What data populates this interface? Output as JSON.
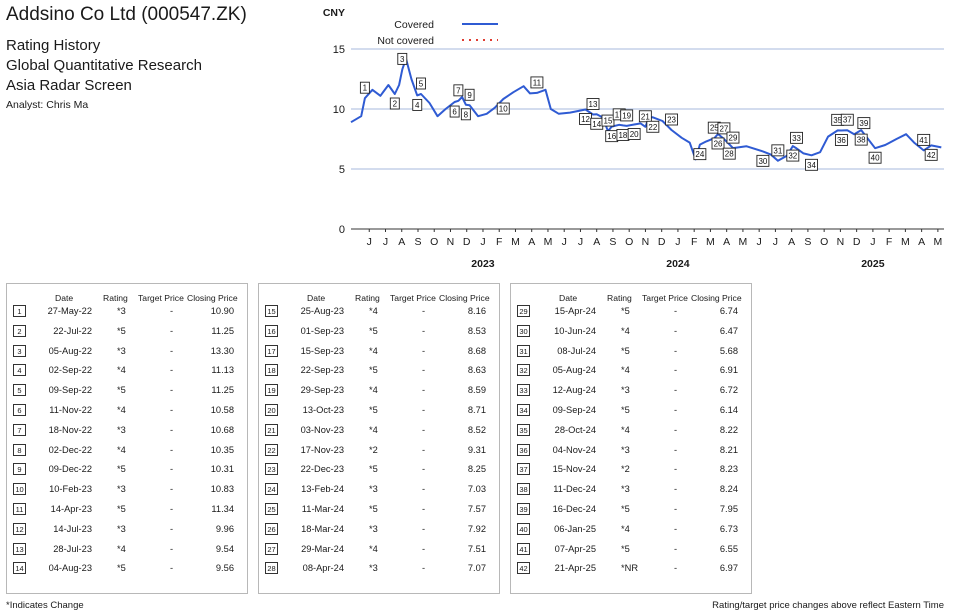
{
  "header": {
    "company": "Addsino Co Ltd (000547.ZK)",
    "lines": [
      "Rating History",
      "Global Quantitative Research",
      "Asia Radar Screen"
    ],
    "analyst": "Analyst: Chris Ma"
  },
  "chart_data": {
    "type": "line",
    "ylabel": "CNY",
    "ylim": [
      0,
      18
    ],
    "yticks": [
      0,
      5,
      10,
      15
    ],
    "grid": true,
    "legend": {
      "position": "top-left",
      "entries": [
        {
          "label": "Covered",
          "style": "solid",
          "color": "#2f5bd3"
        },
        {
          "label": "Not covered",
          "style": "dotted",
          "color": "#e03c31"
        }
      ]
    },
    "x_month_labels": [
      "J",
      "J",
      "A",
      "S",
      "O",
      "N",
      "D",
      "J",
      "F",
      "M",
      "A",
      "M",
      "J",
      "J",
      "A",
      "S",
      "O",
      "N",
      "D",
      "J",
      "F",
      "M",
      "A",
      "M",
      "J",
      "J",
      "A",
      "S",
      "O",
      "N",
      "D",
      "J",
      "F",
      "M",
      "A",
      "M"
    ],
    "x_year_labels": [
      {
        "label": "2023",
        "month_index": 7
      },
      {
        "label": "2024",
        "month_index": 19
      },
      {
        "label": "2025",
        "month_index": 31
      }
    ],
    "series": [
      {
        "style": "covered",
        "color": "#2f5bd3",
        "points": [
          [
            "2022-05-01",
            8.9
          ],
          [
            "2022-05-20",
            9.4
          ],
          [
            "2022-05-27",
            10.9
          ],
          [
            "2022-06-10",
            11.6
          ],
          [
            "2022-06-25",
            11.1
          ],
          [
            "2022-07-10",
            12.0
          ],
          [
            "2022-07-22",
            11.25
          ],
          [
            "2022-07-30",
            12.0
          ],
          [
            "2022-08-05",
            13.3
          ],
          [
            "2022-08-12",
            14.2
          ],
          [
            "2022-08-22",
            12.5
          ],
          [
            "2022-09-02",
            11.13
          ],
          [
            "2022-09-09",
            11.25
          ],
          [
            "2022-09-25",
            10.5
          ],
          [
            "2022-10-10",
            9.4
          ],
          [
            "2022-10-25",
            10.0
          ],
          [
            "2022-11-11",
            10.58
          ],
          [
            "2022-11-18",
            10.68
          ],
          [
            "2022-11-25",
            11.0
          ],
          [
            "2022-12-02",
            10.35
          ],
          [
            "2022-12-09",
            10.31
          ],
          [
            "2022-12-25",
            9.4
          ],
          [
            "2023-01-10",
            9.6
          ],
          [
            "2023-01-25",
            10.1
          ],
          [
            "2023-02-10",
            10.83
          ],
          [
            "2023-03-01",
            11.4
          ],
          [
            "2023-03-20",
            11.9
          ],
          [
            "2023-04-01",
            11.3
          ],
          [
            "2023-04-14",
            11.34
          ],
          [
            "2023-04-30",
            11.6
          ],
          [
            "2023-05-10",
            10.0
          ],
          [
            "2023-05-25",
            9.6
          ],
          [
            "2023-06-15",
            9.7
          ],
          [
            "2023-07-14",
            9.96
          ],
          [
            "2023-07-28",
            9.54
          ],
          [
            "2023-08-04",
            9.56
          ],
          [
            "2023-08-15",
            9.3
          ],
          [
            "2023-08-25",
            8.16
          ],
          [
            "2023-09-01",
            8.53
          ],
          [
            "2023-09-15",
            8.68
          ],
          [
            "2023-09-22",
            8.63
          ],
          [
            "2023-09-29",
            8.59
          ],
          [
            "2023-10-13",
            8.71
          ],
          [
            "2023-10-25",
            8.8
          ],
          [
            "2023-11-03",
            8.52
          ],
          [
            "2023-11-10",
            9.3
          ],
          [
            "2023-11-17",
            9.31
          ],
          [
            "2023-12-05",
            9.0
          ],
          [
            "2023-12-22",
            8.25
          ],
          [
            "2024-01-10",
            7.6
          ],
          [
            "2024-01-25",
            7.2
          ],
          [
            "2024-02-05",
            5.8
          ],
          [
            "2024-02-13",
            7.03
          ],
          [
            "2024-02-25",
            7.3
          ],
          [
            "2024-03-11",
            7.57
          ],
          [
            "2024-03-18",
            7.92
          ],
          [
            "2024-03-29",
            7.51
          ],
          [
            "2024-04-08",
            7.07
          ],
          [
            "2024-04-15",
            6.74
          ],
          [
            "2024-05-10",
            6.9
          ],
          [
            "2024-06-10",
            6.47
          ],
          [
            "2024-06-25",
            6.2
          ],
          [
            "2024-07-08",
            5.68
          ],
          [
            "2024-07-25",
            6.1
          ],
          [
            "2024-08-05",
            6.91
          ],
          [
            "2024-08-12",
            6.72
          ],
          [
            "2024-08-25",
            6.3
          ],
          [
            "2024-09-09",
            6.14
          ],
          [
            "2024-09-25",
            6.4
          ],
          [
            "2024-10-10",
            7.7
          ],
          [
            "2024-10-28",
            8.22
          ],
          [
            "2024-11-04",
            8.21
          ],
          [
            "2024-11-15",
            8.23
          ],
          [
            "2024-11-28",
            7.9
          ],
          [
            "2024-12-11",
            8.24
          ],
          [
            "2024-12-16",
            7.95
          ],
          [
            "2025-01-06",
            6.73
          ],
          [
            "2025-01-25",
            7.0
          ],
          [
            "2025-02-15",
            7.5
          ],
          [
            "2025-03-05",
            7.9
          ],
          [
            "2025-03-20",
            7.2
          ],
          [
            "2025-04-07",
            6.55
          ],
          [
            "2025-04-21",
            6.97
          ],
          [
            "2025-05-10",
            6.8
          ]
        ]
      }
    ],
    "markers": [
      {
        "n": 1,
        "date": "2022-05-27",
        "price": 10.9
      },
      {
        "n": 2,
        "date": "2022-07-22",
        "price": 11.25
      },
      {
        "n": 3,
        "date": "2022-08-05",
        "price": 13.3
      },
      {
        "n": 4,
        "date": "2022-09-02",
        "price": 11.13
      },
      {
        "n": 5,
        "date": "2022-09-09",
        "price": 11.25
      },
      {
        "n": 6,
        "date": "2022-11-11",
        "price": 10.58
      },
      {
        "n": 7,
        "date": "2022-11-18",
        "price": 10.68
      },
      {
        "n": 8,
        "date": "2022-12-02",
        "price": 10.35
      },
      {
        "n": 9,
        "date": "2022-12-09",
        "price": 10.31
      },
      {
        "n": 10,
        "date": "2023-02-10",
        "price": 10.83
      },
      {
        "n": 11,
        "date": "2023-04-14",
        "price": 11.34
      },
      {
        "n": 12,
        "date": "2023-07-14",
        "price": 9.96
      },
      {
        "n": 13,
        "date": "2023-07-28",
        "price": 9.54
      },
      {
        "n": 14,
        "date": "2023-08-04",
        "price": 9.56
      },
      {
        "n": 15,
        "date": "2023-08-25",
        "price": 8.16
      },
      {
        "n": 16,
        "date": "2023-09-01",
        "price": 8.53
      },
      {
        "n": 17,
        "date": "2023-09-15",
        "price": 8.68
      },
      {
        "n": 18,
        "date": "2023-09-22",
        "price": 8.63
      },
      {
        "n": 19,
        "date": "2023-09-29",
        "price": 8.59
      },
      {
        "n": 20,
        "date": "2023-10-13",
        "price": 8.71
      },
      {
        "n": 21,
        "date": "2023-11-03",
        "price": 8.52
      },
      {
        "n": 22,
        "date": "2023-11-17",
        "price": 9.31
      },
      {
        "n": 23,
        "date": "2023-12-22",
        "price": 8.25
      },
      {
        "n": 24,
        "date": "2024-02-13",
        "price": 7.03
      },
      {
        "n": 25,
        "date": "2024-03-11",
        "price": 7.57
      },
      {
        "n": 26,
        "date": "2024-03-18",
        "price": 7.92
      },
      {
        "n": 27,
        "date": "2024-03-29",
        "price": 7.51
      },
      {
        "n": 28,
        "date": "2024-04-08",
        "price": 7.07
      },
      {
        "n": 29,
        "date": "2024-04-15",
        "price": 6.74
      },
      {
        "n": 30,
        "date": "2024-06-10",
        "price": 6.47
      },
      {
        "n": 31,
        "date": "2024-07-08",
        "price": 5.68
      },
      {
        "n": 32,
        "date": "2024-08-05",
        "price": 6.91
      },
      {
        "n": 33,
        "date": "2024-08-12",
        "price": 6.72
      },
      {
        "n": 34,
        "date": "2024-09-09",
        "price": 6.14
      },
      {
        "n": 35,
        "date": "2024-10-28",
        "price": 8.22
      },
      {
        "n": 36,
        "date": "2024-11-04",
        "price": 8.21
      },
      {
        "n": 37,
        "date": "2024-11-15",
        "price": 8.23
      },
      {
        "n": 38,
        "date": "2024-12-11",
        "price": 8.24
      },
      {
        "n": 39,
        "date": "2024-12-16",
        "price": 7.95
      },
      {
        "n": 40,
        "date": "2025-01-06",
        "price": 6.73
      },
      {
        "n": 41,
        "date": "2025-04-07",
        "price": 6.55
      },
      {
        "n": 42,
        "date": "2025-04-21",
        "price": 6.97
      }
    ]
  },
  "table": {
    "headers": {
      "date": "Date",
      "rating": "Rating",
      "target": "Target Price",
      "close": "Closing Price"
    },
    "columns": [
      [
        {
          "n": "1",
          "date": "27-May-22",
          "rating": "*3",
          "target": "-",
          "close": "10.90"
        },
        {
          "n": "2",
          "date": "22-Jul-22",
          "rating": "*5",
          "target": "-",
          "close": "11.25"
        },
        {
          "n": "3",
          "date": "05-Aug-22",
          "rating": "*3",
          "target": "-",
          "close": "13.30"
        },
        {
          "n": "4",
          "date": "02-Sep-22",
          "rating": "*4",
          "target": "-",
          "close": "11.13"
        },
        {
          "n": "5",
          "date": "09-Sep-22",
          "rating": "*5",
          "target": "-",
          "close": "11.25"
        },
        {
          "n": "6",
          "date": "11-Nov-22",
          "rating": "*4",
          "target": "-",
          "close": "10.58"
        },
        {
          "n": "7",
          "date": "18-Nov-22",
          "rating": "*3",
          "target": "-",
          "close": "10.68"
        },
        {
          "n": "8",
          "date": "02-Dec-22",
          "rating": "*4",
          "target": "-",
          "close": "10.35"
        },
        {
          "n": "9",
          "date": "09-Dec-22",
          "rating": "*5",
          "target": "-",
          "close": "10.31"
        },
        {
          "n": "10",
          "date": "10-Feb-23",
          "rating": "*3",
          "target": "-",
          "close": "10.83"
        },
        {
          "n": "11",
          "date": "14-Apr-23",
          "rating": "*5",
          "target": "-",
          "close": "11.34"
        },
        {
          "n": "12",
          "date": "14-Jul-23",
          "rating": "*3",
          "target": "-",
          "close": "9.96"
        },
        {
          "n": "13",
          "date": "28-Jul-23",
          "rating": "*4",
          "target": "-",
          "close": "9.54"
        },
        {
          "n": "14",
          "date": "04-Aug-23",
          "rating": "*5",
          "target": "-",
          "close": "9.56"
        }
      ],
      [
        {
          "n": "15",
          "date": "25-Aug-23",
          "rating": "*4",
          "target": "-",
          "close": "8.16"
        },
        {
          "n": "16",
          "date": "01-Sep-23",
          "rating": "*5",
          "target": "-",
          "close": "8.53"
        },
        {
          "n": "17",
          "date": "15-Sep-23",
          "rating": "*4",
          "target": "-",
          "close": "8.68"
        },
        {
          "n": "18",
          "date": "22-Sep-23",
          "rating": "*5",
          "target": "-",
          "close": "8.63"
        },
        {
          "n": "19",
          "date": "29-Sep-23",
          "rating": "*4",
          "target": "-",
          "close": "8.59"
        },
        {
          "n": "20",
          "date": "13-Oct-23",
          "rating": "*5",
          "target": "-",
          "close": "8.71"
        },
        {
          "n": "21",
          "date": "03-Nov-23",
          "rating": "*4",
          "target": "-",
          "close": "8.52"
        },
        {
          "n": "22",
          "date": "17-Nov-23",
          "rating": "*2",
          "target": "-",
          "close": "9.31"
        },
        {
          "n": "23",
          "date": "22-Dec-23",
          "rating": "*5",
          "target": "-",
          "close": "8.25"
        },
        {
          "n": "24",
          "date": "13-Feb-24",
          "rating": "*3",
          "target": "-",
          "close": "7.03"
        },
        {
          "n": "25",
          "date": "11-Mar-24",
          "rating": "*5",
          "target": "-",
          "close": "7.57"
        },
        {
          "n": "26",
          "date": "18-Mar-24",
          "rating": "*3",
          "target": "-",
          "close": "7.92"
        },
        {
          "n": "27",
          "date": "29-Mar-24",
          "rating": "*4",
          "target": "-",
          "close": "7.51"
        },
        {
          "n": "28",
          "date": "08-Apr-24",
          "rating": "*3",
          "target": "-",
          "close": "7.07"
        }
      ],
      [
        {
          "n": "29",
          "date": "15-Apr-24",
          "rating": "*5",
          "target": "-",
          "close": "6.74"
        },
        {
          "n": "30",
          "date": "10-Jun-24",
          "rating": "*4",
          "target": "-",
          "close": "6.47"
        },
        {
          "n": "31",
          "date": "08-Jul-24",
          "rating": "*5",
          "target": "-",
          "close": "5.68"
        },
        {
          "n": "32",
          "date": "05-Aug-24",
          "rating": "*4",
          "target": "-",
          "close": "6.91"
        },
        {
          "n": "33",
          "date": "12-Aug-24",
          "rating": "*3",
          "target": "-",
          "close": "6.72"
        },
        {
          "n": "34",
          "date": "09-Sep-24",
          "rating": "*5",
          "target": "-",
          "close": "6.14"
        },
        {
          "n": "35",
          "date": "28-Oct-24",
          "rating": "*4",
          "target": "-",
          "close": "8.22"
        },
        {
          "n": "36",
          "date": "04-Nov-24",
          "rating": "*3",
          "target": "-",
          "close": "8.21"
        },
        {
          "n": "37",
          "date": "15-Nov-24",
          "rating": "*2",
          "target": "-",
          "close": "8.23"
        },
        {
          "n": "38",
          "date": "11-Dec-24",
          "rating": "*3",
          "target": "-",
          "close": "8.24"
        },
        {
          "n": "39",
          "date": "16-Dec-24",
          "rating": "*5",
          "target": "-",
          "close": "7.95"
        },
        {
          "n": "40",
          "date": "06-Jan-25",
          "rating": "*4",
          "target": "-",
          "close": "6.73"
        },
        {
          "n": "41",
          "date": "07-Apr-25",
          "rating": "*5",
          "target": "-",
          "close": "6.55"
        },
        {
          "n": "42",
          "date": "21-Apr-25",
          "rating": "*NR",
          "target": "-",
          "close": "6.97"
        }
      ]
    ]
  },
  "footer": {
    "left": "*Indicates Change",
    "right": "Rating/target price changes above reflect Eastern Time"
  }
}
